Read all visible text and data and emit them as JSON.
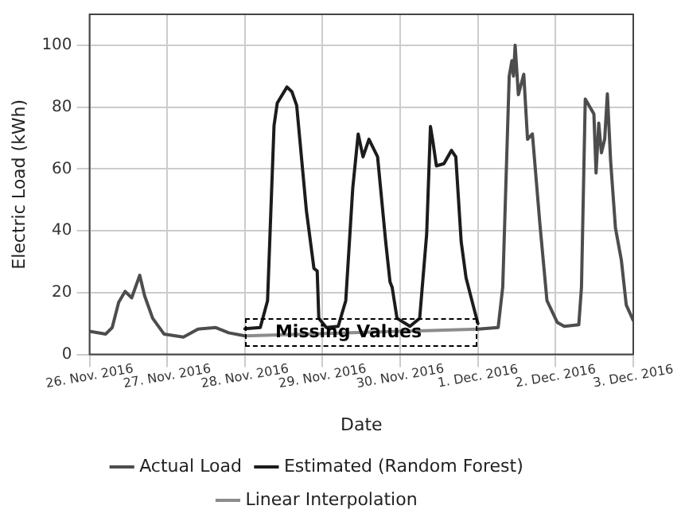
{
  "chart_data": {
    "type": "line",
    "xlabel": "Date",
    "ylabel": "Electric Load (kWh)",
    "xlim": [
      "2016-11-26",
      "2016-12-03"
    ],
    "xticks": [
      {
        "value": "2016-11-26",
        "label": "26. Nov. 2016"
      },
      {
        "value": "2016-11-27",
        "label": "27. Nov. 2016"
      },
      {
        "value": "2016-11-28",
        "label": "28. Nov. 2016"
      },
      {
        "value": "2016-11-29",
        "label": "29. Nov. 2016"
      },
      {
        "value": "2016-11-30",
        "label": "30. Nov. 2016"
      },
      {
        "value": "2016-12-01",
        "label": "1. Dec. 2016"
      },
      {
        "value": "2016-12-02",
        "label": "2. Dec. 2016"
      },
      {
        "value": "2016-12-03",
        "label": "3. Dec. 2016"
      }
    ],
    "ylim": [
      0,
      110
    ],
    "yticks": [
      0,
      20,
      40,
      60,
      80,
      100
    ],
    "grid": true,
    "legend": "bottom",
    "marker": "none",
    "line_style": "solid",
    "series": [
      {
        "name": "Actual Load",
        "color": "#4d4d4d",
        "x": [
          "2016-11-26T00:00",
          "2016-11-26T05:00",
          "2016-11-26T07:00",
          "2016-11-26T09:00",
          "2016-11-26T11:00",
          "2016-11-26T13:00",
          "2016-11-26T15:30",
          "2016-11-26T17:00",
          "2016-11-26T19:30",
          "2016-11-26T23:00",
          "2016-11-27T05:00",
          "2016-11-27T09:30",
          "2016-11-27T15:00",
          "2016-11-27T19:00",
          "2016-11-28T00:00",
          "2016-11-30T00:00",
          "2016-12-01T00:00",
          "2016-12-01T06:15",
          "2016-12-01T07:40",
          "2016-12-01T09:40",
          "2016-12-01T10:30",
          "2016-12-01T11:00",
          "2016-12-01T11:30",
          "2016-12-01T12:30",
          "2016-12-01T14:10",
          "2016-12-01T15:20",
          "2016-12-01T16:50",
          "2016-12-01T19:10",
          "2016-12-01T21:20",
          "2016-12-02T00:30",
          "2016-12-02T02:40",
          "2016-12-02T07:10",
          "2016-12-02T08:00",
          "2016-12-02T09:10",
          "2016-12-02T11:50",
          "2016-12-02T12:30",
          "2016-12-02T13:20",
          "2016-12-02T14:10",
          "2016-12-02T15:10",
          "2016-12-02T16:00",
          "2016-12-02T17:00",
          "2016-12-02T18:30",
          "2016-12-02T20:20",
          "2016-12-02T21:50",
          "2016-12-03T00:00"
        ],
        "values": [
          7.5,
          6.6,
          8.7,
          16.9,
          20.4,
          18.3,
          25.6,
          19,
          11.7,
          6.6,
          5.6,
          8.2,
          8.7,
          7,
          6,
          null,
          8.2,
          8.7,
          21.8,
          90,
          95,
          90,
          100,
          84,
          90.6,
          69.6,
          71.3,
          42,
          17.4,
          10.4,
          9.1,
          9.6,
          21.8,
          82.6,
          77.8,
          58.7,
          74.8,
          65.2,
          69.6,
          84.3,
          62.6,
          40.9,
          30.4,
          16,
          11
        ]
      },
      {
        "name": "Estimated (Random Forest)",
        "color": "#1c1c1c",
        "x": [
          "2016-11-28T00:00",
          "2016-11-28T04:45",
          "2016-11-28T07:00",
          "2016-11-28T09:00",
          "2016-11-28T10:00",
          "2016-11-28T13:00",
          "2016-11-28T14:30",
          "2016-11-28T16:00",
          "2016-11-28T19:00",
          "2016-11-28T21:20",
          "2016-11-28T22:20",
          "2016-11-28T22:50",
          "2016-11-29T01:10",
          "2016-11-29T04:50",
          "2016-11-29T07:10",
          "2016-11-29T09:20",
          "2016-11-29T11:00",
          "2016-11-29T12:30",
          "2016-11-29T14:20",
          "2016-11-29T17:00",
          "2016-11-29T19:30",
          "2016-11-29T20:50",
          "2016-11-29T21:30",
          "2016-11-29T23:00",
          "2016-11-30T03:00",
          "2016-11-30T06:00",
          "2016-11-30T08:10",
          "2016-11-30T09:20",
          "2016-11-30T10:10",
          "2016-11-30T11:10",
          "2016-11-30T13:30",
          "2016-11-30T15:50",
          "2016-11-30T17:10",
          "2016-11-30T18:50",
          "2016-11-30T20:20",
          "2016-11-30T22:40",
          "2016-12-01T00:00"
        ],
        "values": [
          8.3,
          8.7,
          17.4,
          74,
          81.3,
          86.5,
          85,
          80.5,
          46.5,
          27.8,
          27,
          11.7,
          8.7,
          9.1,
          17.4,
          53.9,
          71.3,
          63.9,
          69.6,
          63.9,
          36.5,
          23.5,
          21.7,
          11.7,
          9.1,
          11.7,
          39,
          73.7,
          68.3,
          61,
          61.7,
          66,
          63.9,
          36.4,
          24.8,
          15.3,
          10
        ]
      },
      {
        "name": "Linear Interpolation",
        "color": "#8c8c8c",
        "x": [
          "2016-11-28T00:00",
          "2016-12-01T00:00"
        ],
        "values": [
          6,
          8.2
        ]
      }
    ],
    "annotations": [
      {
        "text": "Missing Values",
        "x": "2016-11-29T08:00",
        "y": 7
      }
    ]
  }
}
